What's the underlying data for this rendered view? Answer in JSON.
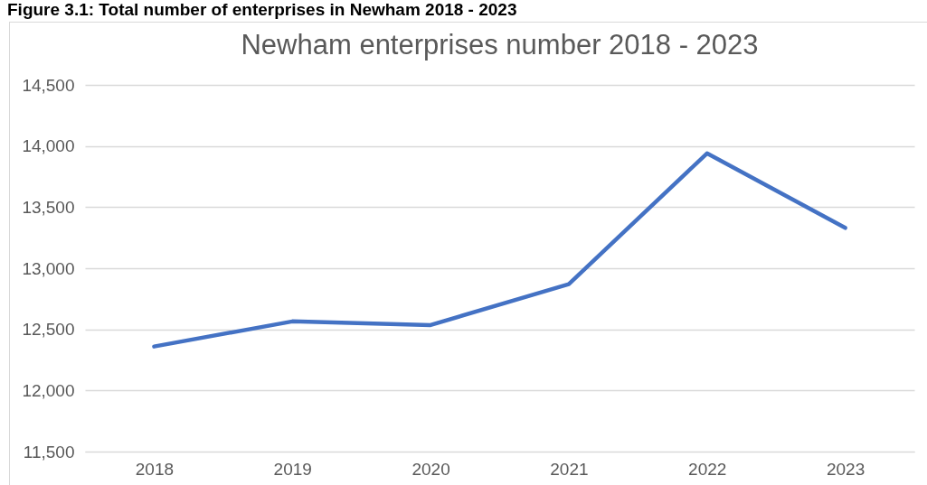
{
  "chart_data": {
    "type": "line",
    "title": "Newham enterprises number 2018 - 2023",
    "annotations": [
      "Figure 3.1: Total number of enterprises in Newham 2018 - 2023"
    ],
    "categories": [
      "2018",
      "2019",
      "2020",
      "2021",
      "2022",
      "2023"
    ],
    "series": [
      {
        "color": "#4472c4",
        "values": [
          12360,
          12565,
          12535,
          12870,
          13940,
          13330
        ]
      }
    ],
    "ylim": [
      11500,
      14500
    ],
    "yticks": [
      {
        "value": 11500,
        "label": "11,500"
      },
      {
        "value": 12000,
        "label": "12,000"
      },
      {
        "value": 12500,
        "label": "12,500"
      },
      {
        "value": 13000,
        "label": "13,000"
      },
      {
        "value": 13500,
        "label": "13,500"
      },
      {
        "value": 14000,
        "label": "14,000"
      },
      {
        "value": 14500,
        "label": "14,500"
      }
    ],
    "grid": "y",
    "marker": "none",
    "line_style": "solid"
  }
}
